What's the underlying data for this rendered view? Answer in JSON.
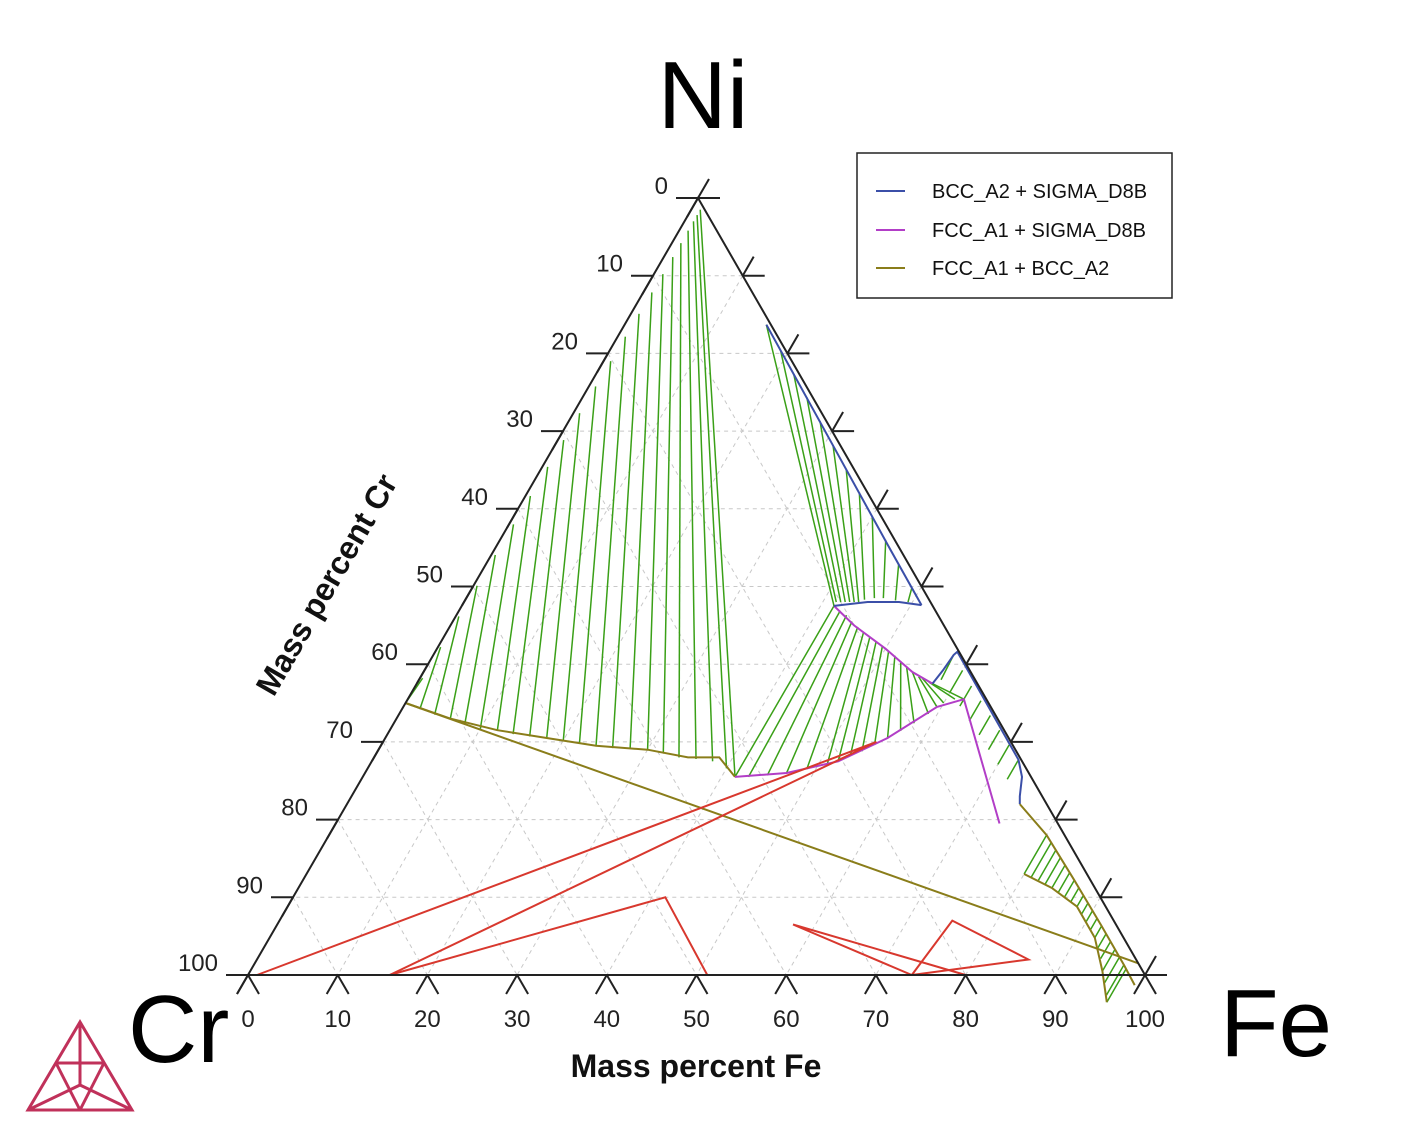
{
  "chart_data": {
    "type": "ternary",
    "corners": {
      "top": "Ni",
      "left": "Cr",
      "right": "Fe"
    },
    "xlabel": "Mass percent Fe",
    "ylabel": "Mass percent Cr",
    "bottom_ticks": [
      "0",
      "10",
      "20",
      "30",
      "40",
      "50",
      "60",
      "70",
      "80",
      "90",
      "100"
    ],
    "left_ticks": [
      "0",
      "10",
      "20",
      "30",
      "40",
      "50",
      "60",
      "70",
      "80",
      "90",
      "100"
    ],
    "grid": true,
    "legend_position": "top-right",
    "legend": [
      {
        "name": "BCC_A2 + SIGMA_D8B",
        "color": "#3b4fa8"
      },
      {
        "name": "FCC_A1 + SIGMA_D8B",
        "color": "#b23ec7"
      },
      {
        "name": "FCC_A1 + BCC_A2",
        "color": "#8a7d1a"
      }
    ],
    "tie_line_color": "#3aa017",
    "three_phase_color": "#d8382e",
    "three_phase_triangles": [
      {
        "fe_cr": [
          [
            1,
            99
          ],
          [
            15.8,
            84.2
          ],
          [
            55,
            15
          ]
        ]
      },
      {
        "fe_cr": [
          [
            15.8,
            84.2
          ],
          [
            41.5,
            48.5
          ],
          [
            51.2,
            48.8
          ]
        ]
      },
      {
        "fe_cr": [
          [
            57.5,
            36
          ],
          [
            74,
            26
          ],
          [
            80,
            20
          ]
        ]
      },
      {
        "fe_cr": [
          [
            74,
            26
          ],
          [
            75,
            18
          ],
          [
            86,
            12
          ]
        ]
      }
    ],
    "boundaries": {
      "fcc_bcc_left": [
        [
          0,
          65
        ],
        [
          98.5,
          0
        ]
      ],
      "fcc_bcc_upper": [
        [
          0,
          65
        ],
        [
          6,
          61
        ],
        [
          12,
          56.5
        ],
        [
          18,
          51.5
        ],
        [
          24,
          46.5
        ],
        [
          30,
          41
        ],
        [
          35,
          37
        ],
        [
          38.5,
          33.5
        ],
        [
          41.5,
          33
        ]
      ],
      "fcc_sigma_upper": [
        [
          41.5,
          33
        ],
        [
          47,
          27
        ],
        [
          52,
          20.5
        ],
        [
          56,
          13.5
        ],
        [
          59.5,
          6
        ],
        [
          62,
          2.5
        ],
        [
          74,
          6.5
        ]
      ],
      "fcc_sigma_lower": [
        [
          41.5,
          11
        ],
        [
          45,
          10
        ],
        [
          50,
          8
        ],
        [
          54.5,
          6.5
        ],
        [
          57.5,
          5
        ]
      ],
      "bcc_sigma_left": [
        [
          15.8,
          0.5
        ],
        [
          30,
          0.8
        ],
        [
          44,
          1.1
        ],
        [
          51.2,
          1.2
        ]
      ],
      "bcc_sigma_right": [
        [
          41.5,
          11
        ],
        [
          45,
          7
        ],
        [
          48.5,
          3.5
        ],
        [
          51.2,
          1.2
        ]
      ],
      "bcc_sigma_2": [
        [
          57.5,
          5
        ],
        [
          57.8,
          3
        ],
        [
          58,
          0.8
        ],
        [
          58.2,
          0.2
        ],
        [
          72,
          0.3
        ],
        [
          73.5,
          1
        ],
        [
          74.5,
          2.5
        ],
        [
          75,
          3
        ]
      ],
      "fcc_bcc_right_upper": [
        [
          80,
          7
        ],
        [
          84,
          4.8
        ],
        [
          88,
          3.2
        ],
        [
          92,
          3.2
        ],
        [
          95,
          4.5
        ],
        [
          97.5,
          6
        ]
      ],
      "fcc_bcc_right_lower": [
        [
          75,
          3
        ],
        [
          80,
          2
        ],
        [
          86,
          1.8
        ],
        [
          92,
          1.7
        ],
        [
          97,
          1.7
        ],
        [
          99.5,
          1.8
        ]
      ]
    },
    "tie_line_regions": [
      {
        "from": [
          [
            0,
            65
          ],
          [
            2,
            63.8
          ],
          [
            4,
            62.5
          ],
          [
            6,
            61
          ],
          [
            8,
            59.8
          ],
          [
            10,
            58.3
          ],
          [
            12,
            56.5
          ],
          [
            14,
            55
          ],
          [
            16,
            53.3
          ],
          [
            18,
            51.5
          ],
          [
            20,
            49.8
          ],
          [
            22,
            48.2
          ],
          [
            24,
            46.5
          ],
          [
            26,
            44.8
          ],
          [
            28,
            42.9
          ],
          [
            30,
            41
          ],
          [
            32,
            39.5
          ],
          [
            34,
            38
          ],
          [
            36,
            36.2
          ],
          [
            38,
            34.5
          ],
          [
            40,
            33.4
          ],
          [
            41.5,
            33
          ]
        ],
        "to": [
          [
            0.3,
            61.5
          ],
          [
            0.3,
            57.5
          ],
          [
            0.35,
            53.5
          ],
          [
            0.4,
            49.5
          ],
          [
            0.45,
            45.5
          ],
          [
            0.5,
            41.5
          ],
          [
            0.55,
            37.8
          ],
          [
            0.6,
            34
          ],
          [
            0.65,
            30.5
          ],
          [
            0.7,
            27
          ],
          [
            0.75,
            23.5
          ],
          [
            0.8,
            20.2
          ],
          [
            0.85,
            17
          ],
          [
            0.9,
            14
          ],
          [
            0.95,
            11.2
          ],
          [
            1,
            8.8
          ],
          [
            1,
            6.6
          ],
          [
            1,
            4.8
          ],
          [
            1,
            3.2
          ],
          [
            1,
            2
          ],
          [
            1,
            1.2
          ],
          [
            1,
            0.5
          ]
        ]
      },
      {
        "from": [
          [
            41.5,
            33
          ],
          [
            43,
            31.5
          ],
          [
            45,
            29.3
          ],
          [
            47,
            27
          ],
          [
            49,
            24.5
          ],
          [
            51,
            22
          ],
          [
            52,
            20.5
          ],
          [
            53,
            18.8
          ],
          [
            54,
            17.2
          ],
          [
            55,
            15.4
          ],
          [
            56,
            13.5
          ],
          [
            57,
            11.6
          ],
          [
            58,
            9.6
          ],
          [
            59,
            7.4
          ],
          [
            59.5,
            6
          ],
          [
            60,
            5
          ],
          [
            61,
            3.5
          ],
          [
            62,
            2.5
          ]
        ],
        "to": [
          [
            41.5,
            11
          ],
          [
            42.5,
            10.6
          ],
          [
            43.5,
            10.2
          ],
          [
            44.5,
            10
          ],
          [
            45.5,
            9.7
          ],
          [
            46.5,
            9.4
          ],
          [
            47.5,
            9
          ],
          [
            48.5,
            8.6
          ],
          [
            49.5,
            8.2
          ],
          [
            50.5,
            7.8
          ],
          [
            51.5,
            7.4
          ],
          [
            52.5,
            7.1
          ],
          [
            53.5,
            6.8
          ],
          [
            54.5,
            6.5
          ],
          [
            55.5,
            6.1
          ],
          [
            56,
            5.8
          ],
          [
            57,
            5.3
          ],
          [
            57.5,
            5
          ]
        ]
      },
      {
        "from": [
          [
            15.8,
            0.5
          ],
          [
            19,
            0.55
          ],
          [
            22,
            0.6
          ],
          [
            25,
            0.65
          ],
          [
            28,
            0.7
          ],
          [
            31,
            0.8
          ],
          [
            34,
            0.85
          ],
          [
            37,
            0.9
          ],
          [
            40,
            1
          ],
          [
            43,
            1
          ],
          [
            46,
            1.1
          ],
          [
            49,
            1.15
          ],
          [
            51.2,
            1.2
          ]
        ],
        "to": [
          [
            41.5,
            11
          ],
          [
            41.5,
            10.5
          ],
          [
            42,
            10
          ],
          [
            42.5,
            9.5
          ],
          [
            43,
            9
          ],
          [
            43.5,
            8.5
          ],
          [
            44,
            8
          ],
          [
            44.5,
            7.2
          ],
          [
            45.5,
            6
          ],
          [
            46.5,
            5
          ],
          [
            48,
            3.8
          ],
          [
            49.5,
            2.5
          ],
          [
            51.2,
            1.2
          ]
        ]
      },
      {
        "from": [
          [
            58,
            0.8
          ],
          [
            60,
            0.8
          ],
          [
            62,
            0.8
          ],
          [
            64,
            0.7
          ],
          [
            66,
            0.6
          ],
          [
            68,
            0.5
          ],
          [
            70,
            0.4
          ],
          [
            72,
            0.3
          ]
        ],
        "to": [
          [
            58.2,
            3.8
          ],
          [
            60,
            3.6
          ],
          [
            62,
            3.4
          ],
          [
            64,
            3.3
          ],
          [
            66,
            3.1
          ],
          [
            68,
            3
          ],
          [
            70,
            2.9
          ],
          [
            72,
            2.8
          ]
        ]
      },
      {
        "from": [
          [
            80,
            7
          ],
          [
            81,
            6.4
          ],
          [
            82,
            5.8
          ],
          [
            83,
            5.3
          ],
          [
            84,
            4.8
          ],
          [
            85,
            4.4
          ],
          [
            86,
            4
          ],
          [
            87,
            3.6
          ],
          [
            88,
            3.2
          ],
          [
            89,
            3.1
          ],
          [
            90,
            3.1
          ],
          [
            91,
            3.15
          ],
          [
            92,
            3.2
          ],
          [
            93,
            3.5
          ],
          [
            94,
            3.9
          ],
          [
            95,
            4.5
          ],
          [
            96,
            5
          ],
          [
            97,
            5.6
          ],
          [
            97.5,
            6
          ]
        ],
        "to": [
          [
            80,
            2
          ],
          [
            81,
            1.95
          ],
          [
            82,
            1.9
          ],
          [
            83,
            1.85
          ],
          [
            84,
            1.85
          ],
          [
            85,
            1.8
          ],
          [
            86,
            1.8
          ],
          [
            87,
            1.8
          ],
          [
            88,
            1.75
          ],
          [
            89,
            1.75
          ],
          [
            90,
            1.7
          ],
          [
            91,
            1.7
          ],
          [
            92,
            1.7
          ],
          [
            93,
            1.7
          ],
          [
            94,
            1.7
          ],
          [
            95,
            1.7
          ],
          [
            96,
            1.7
          ],
          [
            97,
            1.7
          ],
          [
            97.5,
            1.75
          ]
        ]
      }
    ]
  }
}
